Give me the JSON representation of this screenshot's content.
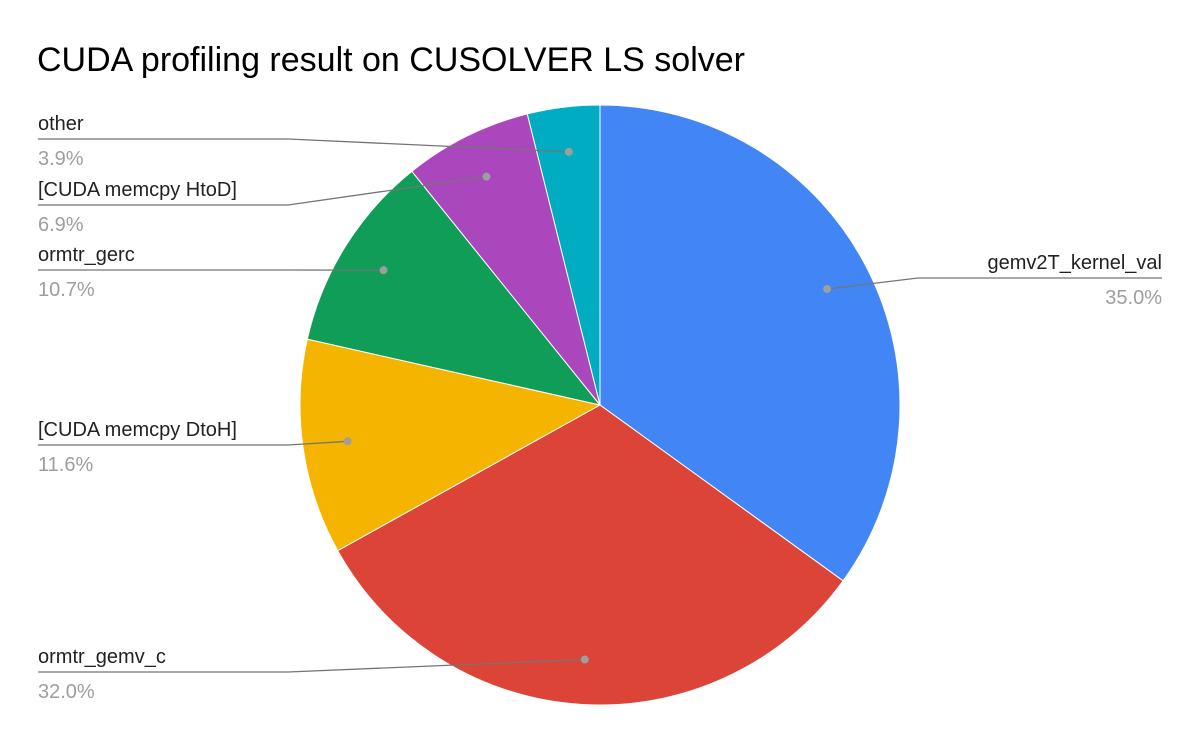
{
  "chart_data": {
    "type": "pie",
    "title": "CUDA profiling result on CUSOLVER LS solver",
    "legend": "labels",
    "slices": [
      {
        "label": "gemv2T_kernel_val",
        "value": 35.0,
        "percent_label": "35.0%",
        "color": "#4285f4"
      },
      {
        "label": "ormtr_gemv_c",
        "value": 32.0,
        "percent_label": "32.0%",
        "color": "#db4437"
      },
      {
        "label": "[CUDA memcpy DtoH]",
        "value": 11.6,
        "percent_label": "11.6%",
        "color": "#f4b400"
      },
      {
        "label": "ormtr_gerc",
        "value": 10.7,
        "percent_label": "10.7%",
        "color": "#0f9d58"
      },
      {
        "label": "[CUDA memcpy HtoD]",
        "value": 6.9,
        "percent_label": "6.9%",
        "color": "#ab47bc"
      },
      {
        "label": "other",
        "value": 3.9,
        "percent_label": "3.9%",
        "color": "#00acc1"
      }
    ]
  }
}
